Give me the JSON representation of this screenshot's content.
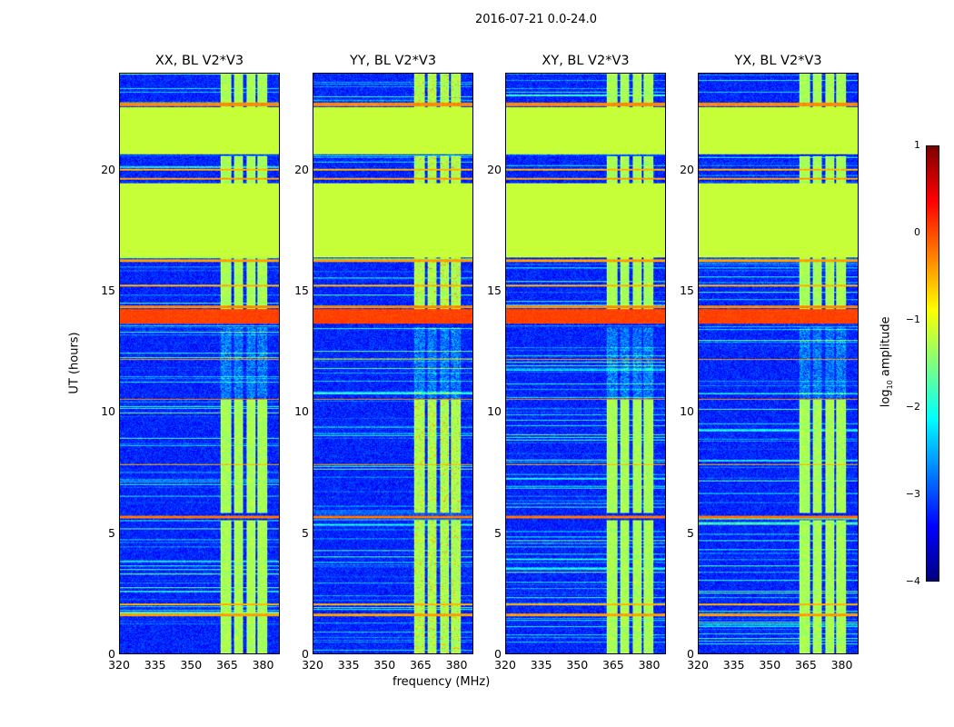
{
  "chart_data": {
    "type": "heatmap",
    "title": "2016-07-21 0.0-24.0",
    "xlabel": "frequency (MHz)",
    "ylabel": "UT (hours)",
    "xlim": [
      320,
      387
    ],
    "ylim": [
      0,
      24
    ],
    "xticks": [
      "320",
      "335",
      "350",
      "365",
      "380"
    ],
    "xtick_values": [
      320,
      335,
      350,
      365,
      380
    ],
    "yticks": [
      "0",
      "5",
      "10",
      "15",
      "20"
    ],
    "ytick_values": [
      0,
      5,
      10,
      15,
      20
    ],
    "panels": [
      {
        "title": "XX, BL V2*V3"
      },
      {
        "title": "YY, BL V2*V3"
      },
      {
        "title": "XY, BL V2*V3"
      },
      {
        "title": "YX, BL V2*V3"
      }
    ],
    "colorbar": {
      "label": "log10 amplitude",
      "label_main": "log",
      "label_sub": "10",
      "label_rest": " amplitude",
      "range": [
        -4,
        1
      ],
      "ticks": [
        "1",
        "0",
        "−1",
        "−2",
        "−3",
        "−4"
      ],
      "tick_values": [
        1,
        0,
        -1,
        -2,
        -3,
        -4
      ],
      "colormap": "jet"
    },
    "background_level": -3.2,
    "flagged_level": -1.15,
    "flagged_hours": [
      [
        16.4,
        19.4
      ],
      [
        19.4,
        19.45
      ],
      [
        20.65,
        22.6
      ]
    ],
    "rfi_bands": [
      [
        13.65,
        14.25,
        0.05
      ],
      [
        14.3,
        14.4,
        -0.3
      ],
      [
        12.15,
        12.2,
        -0.4
      ],
      [
        10.5,
        10.55,
        -0.3
      ],
      [
        7.8,
        7.85,
        -0.5
      ],
      [
        5.6,
        5.7,
        -0.2
      ],
      [
        1.55,
        1.65,
        -0.4
      ],
      [
        2.0,
        2.05,
        -0.5
      ],
      [
        19.6,
        19.7,
        -0.4
      ],
      [
        20.0,
        20.05,
        -0.5
      ],
      [
        22.65,
        22.8,
        -0.3
      ],
      [
        15.2,
        15.25,
        -0.5
      ],
      [
        16.2,
        16.3,
        -0.4
      ]
    ],
    "channel_columns_mhz": [
      [
        362.3,
        366.8
      ],
      [
        368.0,
        371.7
      ],
      [
        373.2,
        377.0
      ],
      [
        378.0,
        382.0
      ]
    ],
    "channel_active_hours": [
      [
        0,
        5.5
      ],
      [
        5.8,
        10.5
      ],
      [
        14.2,
        16.4
      ],
      [
        19.45,
        20.6
      ],
      [
        22.6,
        24
      ]
    ],
    "channel_level": -1.3
  }
}
